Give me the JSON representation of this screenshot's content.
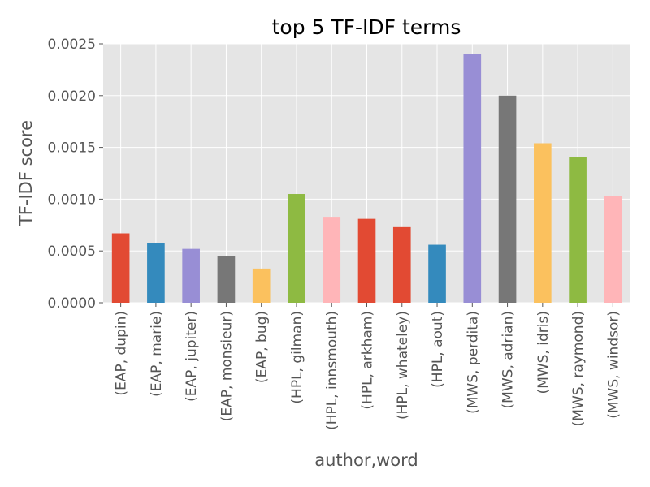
{
  "chart_data": {
    "type": "bar",
    "title": "top 5 TF-IDF terms",
    "xlabel": "author,word",
    "ylabel": "TF-IDF score",
    "ylim": [
      0,
      0.0025
    ],
    "yticks": [
      "0.0000",
      "0.0005",
      "0.0010",
      "0.0015",
      "0.0020",
      "0.0025"
    ],
    "grid": true,
    "categories": [
      "(EAP, dupin)",
      "(EAP, marie)",
      "(EAP, jupiter)",
      "(EAP, monsieur)",
      "(EAP, bug)",
      "(HPL, gilman)",
      "(HPL, innsmouth)",
      "(HPL, arkham)",
      "(HPL, whateley)",
      "(HPL, aout)",
      "(MWS, perdita)",
      "(MWS, adrian)",
      "(MWS, idris)",
      "(MWS, raymond)",
      "(MWS, windsor)"
    ],
    "values": [
      0.00067,
      0.00058,
      0.00052,
      0.00045,
      0.00033,
      0.00105,
      0.00083,
      0.00081,
      0.00073,
      0.00056,
      0.0024,
      0.002,
      0.00154,
      0.00141,
      0.00103
    ],
    "colors": [
      "#E24A33",
      "#348ABD",
      "#988ED5",
      "#777777",
      "#FBC15E",
      "#8EBA42",
      "#FFB5B8",
      "#E24A33",
      "#E24A33",
      "#348ABD",
      "#988ED5",
      "#777777",
      "#FBC15E",
      "#8EBA42",
      "#FFB5B8"
    ],
    "plot_background": "#E5E5E5",
    "grid_color": "#FFFFFF"
  }
}
